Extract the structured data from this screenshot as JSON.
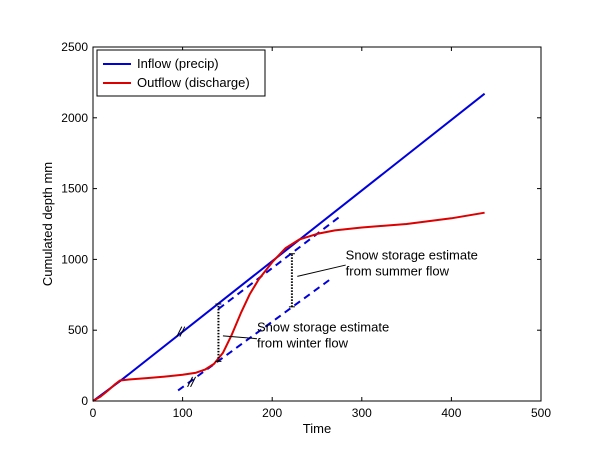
{
  "chart_data": {
    "type": "line",
    "title": "",
    "xlabel": "Time",
    "ylabel": "Cumulated depth mm",
    "xlim": [
      0,
      500
    ],
    "ylim": [
      0,
      2500
    ],
    "xticks": [
      0,
      100,
      200,
      300,
      400,
      500
    ],
    "yticks": [
      0,
      500,
      1000,
      1500,
      2000,
      2500
    ],
    "grid": false,
    "legend_position": "top-left",
    "series": [
      {
        "name": "Inflow (precip)",
        "color": "#0000dd",
        "points": [
          [
            0,
            0
          ],
          [
            30,
            140
          ],
          [
            437,
            2170
          ]
        ]
      },
      {
        "name": "Outflow (discharge)",
        "color": "#dd0000",
        "points": [
          [
            0,
            0
          ],
          [
            8,
            30
          ],
          [
            16,
            70
          ],
          [
            24,
            115
          ],
          [
            30,
            145
          ],
          [
            40,
            152
          ],
          [
            60,
            162
          ],
          [
            80,
            172
          ],
          [
            100,
            185
          ],
          [
            115,
            200
          ],
          [
            125,
            222
          ],
          [
            135,
            262
          ],
          [
            145,
            340
          ],
          [
            155,
            470
          ],
          [
            165,
            620
          ],
          [
            175,
            755
          ],
          [
            185,
            860
          ],
          [
            200,
            980
          ],
          [
            215,
            1080
          ],
          [
            230,
            1140
          ],
          [
            250,
            1180
          ],
          [
            270,
            1205
          ],
          [
            300,
            1225
          ],
          [
            350,
            1250
          ],
          [
            400,
            1290
          ],
          [
            437,
            1330
          ]
        ]
      }
    ],
    "guide_lines": [
      {
        "name": "summer-flow-extrapolation",
        "color": "#0000dd",
        "style": "dashed",
        "points": [
          [
            140,
            650
          ],
          [
            275,
            1300
          ]
        ]
      },
      {
        "name": "winter-flow-extrapolation",
        "color": "#0000dd",
        "style": "dashed",
        "points": [
          [
            95,
            75
          ],
          [
            265,
            860
          ]
        ]
      }
    ],
    "storage_markers": [
      {
        "name": "winter-storage-marker",
        "x": 140,
        "y_low": 280,
        "y_high": 685
      },
      {
        "name": "summer-storage-marker",
        "x": 222,
        "y_low": 665,
        "y_high": 1040
      }
    ],
    "axis_breaks": [
      {
        "name": "inflow-axis-break",
        "x": 98,
        "y": 490
      },
      {
        "name": "winter-line-axis-break",
        "x": 110,
        "y": 135
      }
    ],
    "annotations": [
      {
        "name": "summer-annotation",
        "lines": [
          "Snow storage estimate",
          "from summer flow"
        ],
        "text_at": [
          282,
          1000
        ],
        "pointer_from": [
          282,
          960
        ],
        "pointer_to": [
          228,
          880
        ]
      },
      {
        "name": "winter-annotation",
        "lines": [
          "Snow storage estimate",
          "from winter flow"
        ],
        "text_at": [
          183,
          490
        ],
        "pointer_from": [
          183,
          440
        ],
        "pointer_to": [
          145,
          460
        ]
      }
    ]
  }
}
